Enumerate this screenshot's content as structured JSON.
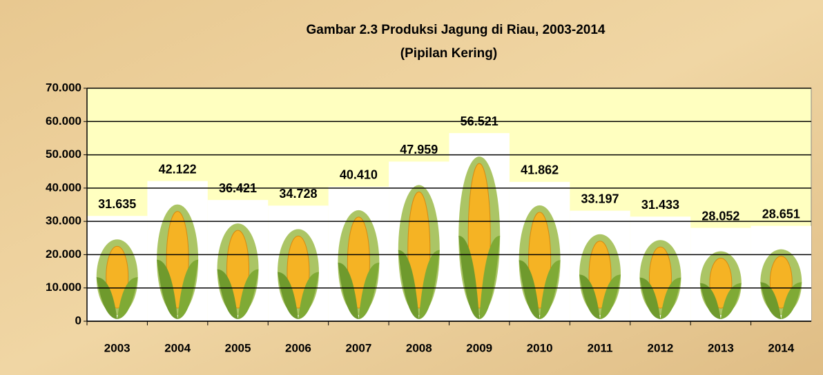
{
  "chart_data": {
    "type": "bar",
    "title": "Gambar 2.3  Produksi Jagung di Riau, 2003-2014",
    "subtitle": "(Pipilan Kering)",
    "categories": [
      "2003",
      "2004",
      "2005",
      "2006",
      "2007",
      "2008",
      "2009",
      "2010",
      "2011",
      "2012",
      "2013",
      "2014"
    ],
    "values": [
      31635,
      42122,
      36421,
      34728,
      40410,
      47959,
      56521,
      41862,
      33197,
      31433,
      28052,
      28651
    ],
    "value_labels": [
      "31.635",
      "42.122",
      "36.421",
      "34.728",
      "40.410",
      "47.959",
      "56.521",
      "41.862",
      "33.197",
      "31.433",
      "28.052",
      "28.651"
    ],
    "color": "#ffffff",
    "ylim": [
      0,
      70000
    ],
    "yticks": [
      0,
      {
        "value": 10000,
        "label": "10.000"
      },
      {
        "value": 20000,
        "label": "20.000"
      },
      {
        "value": 30000,
        "label": "30.000"
      },
      {
        "value": 40000,
        "label": "40.000"
      },
      {
        "value": 50000,
        "label": "50.000"
      },
      {
        "value": 60000,
        "label": "60.000"
      },
      {
        "value": 70000,
        "label": "70.000"
      }
    ],
    "grid": true
  }
}
